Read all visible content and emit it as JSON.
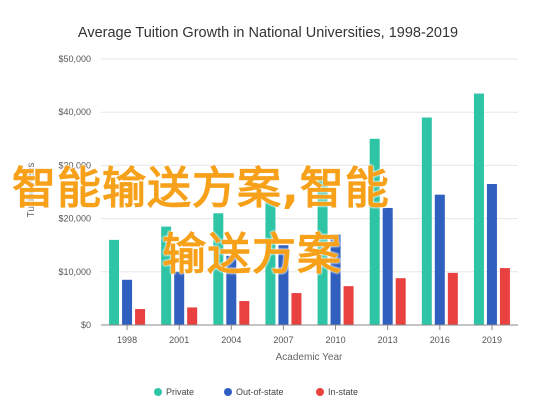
{
  "chart_data": {
    "type": "bar",
    "title": "Average Tuition Growth in National Universities, 1998-2019",
    "xlabel": "Academic Year",
    "ylabel": "Tuition Fees",
    "categories": [
      "1998",
      "2001",
      "2004",
      "2007",
      "2010",
      "2013",
      "2016",
      "2019"
    ],
    "ylim": [
      0,
      50000
    ],
    "yticks": [
      0,
      10000,
      20000,
      30000,
      40000,
      50000
    ],
    "ytick_labels": [
      "$0",
      "$10,000",
      "$20,000",
      "$30,000",
      "$40,000",
      "$50,000"
    ],
    "grid": true,
    "legend_position": "bottom",
    "series": [
      {
        "name": "Private",
        "color": "#2ec4a6",
        "values": [
          16000,
          18500,
          21000,
          23000,
          28000,
          35000,
          39000,
          43500
        ]
      },
      {
        "name": "Out-of-state",
        "color": "#2f5fbf",
        "values": [
          8500,
          10000,
          13000,
          15000,
          17000,
          22000,
          24500,
          26500
        ]
      },
      {
        "name": "In-state",
        "color": "#e94040",
        "values": [
          3000,
          3300,
          4500,
          6000,
          7300,
          8800,
          9800,
          10700
        ]
      }
    ]
  },
  "overlay": {
    "line1": "智能输送方案,智能",
    "line2": "输送方案"
  }
}
